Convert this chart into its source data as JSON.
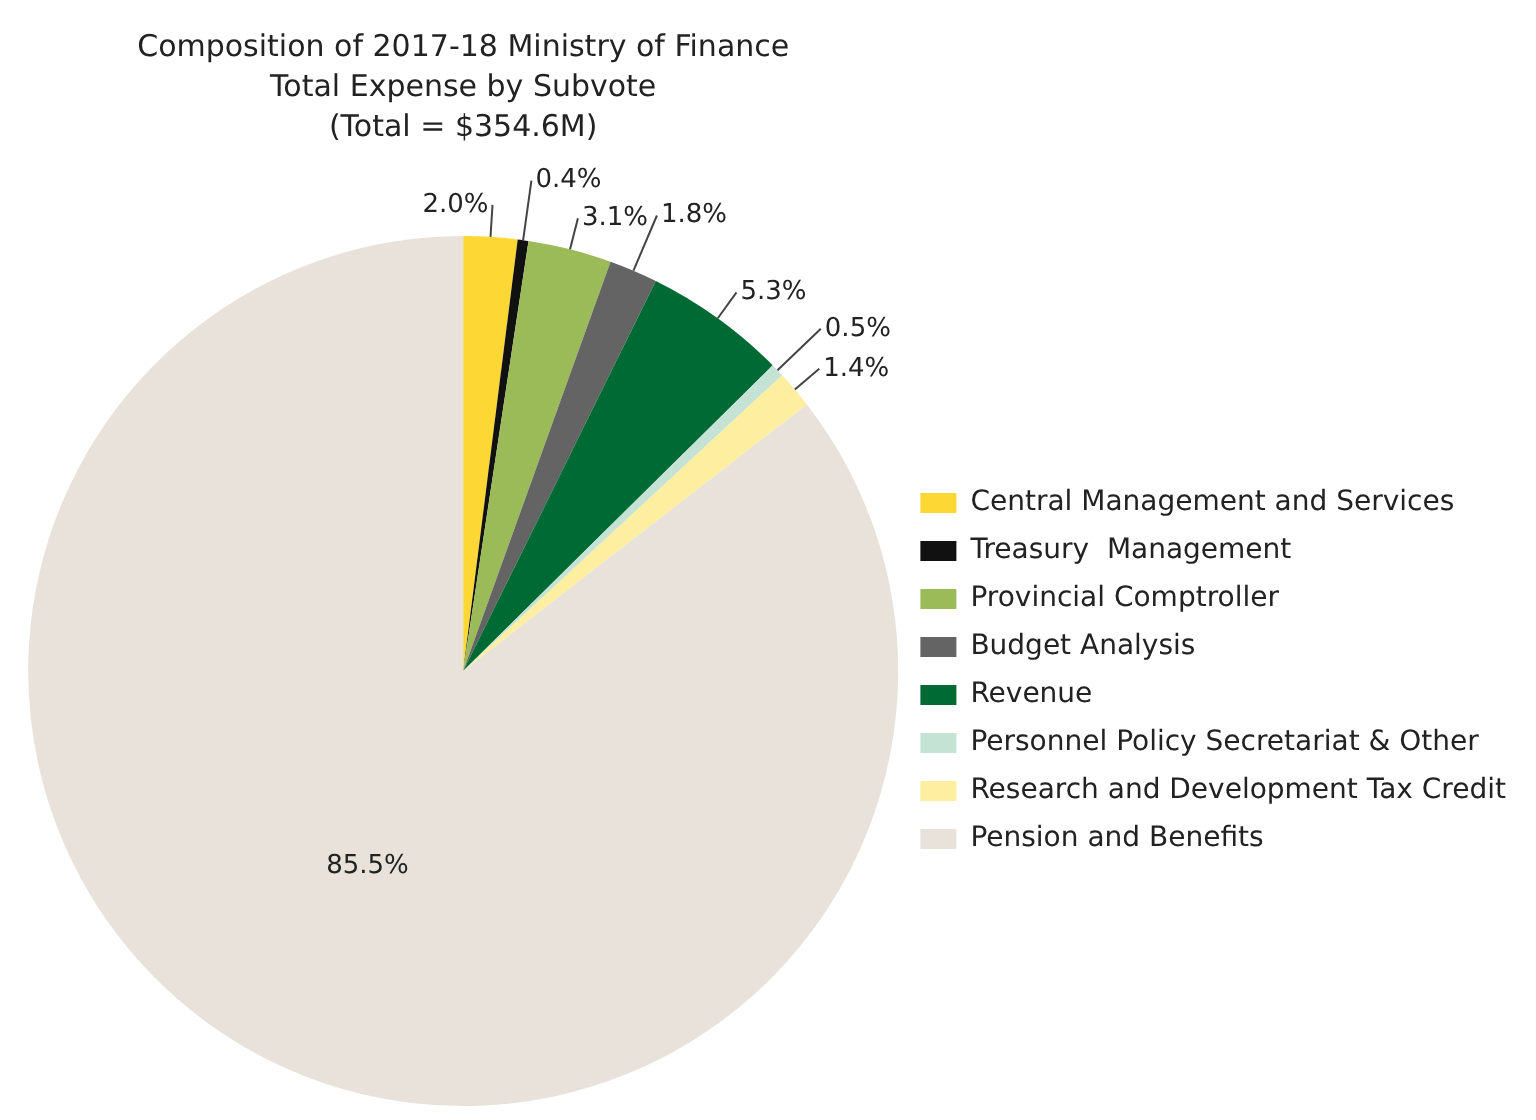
{
  "chart_data": {
    "type": "pie",
    "title": "Composition of 2017-18 Ministry of Finance Total Expense by Subvote",
    "subtitle": "(Total = $354.6M)",
    "categories": [
      "Central Management and Services",
      "Treasury  Management",
      "Provincial Comptroller",
      "Budget Analysis",
      "Revenue",
      "Personnel Policy Secretariat & Other",
      "Research and Development Tax Credit",
      "Pension and Benefits"
    ],
    "values": [
      2.0,
      0.4,
      3.1,
      1.8,
      5.3,
      0.5,
      1.4,
      85.5
    ],
    "colors": [
      "#fdd835",
      "#111111",
      "#9bbb59",
      "#646464",
      "#006a35",
      "#c5e3d5",
      "#fdeea0",
      "#e8e2da"
    ],
    "value_labels": [
      "2.0%",
      "0.4%",
      "3.1%",
      "1.8%",
      "5.3%",
      "0.5%",
      "1.4%",
      "85.5%"
    ],
    "legend": "right"
  }
}
